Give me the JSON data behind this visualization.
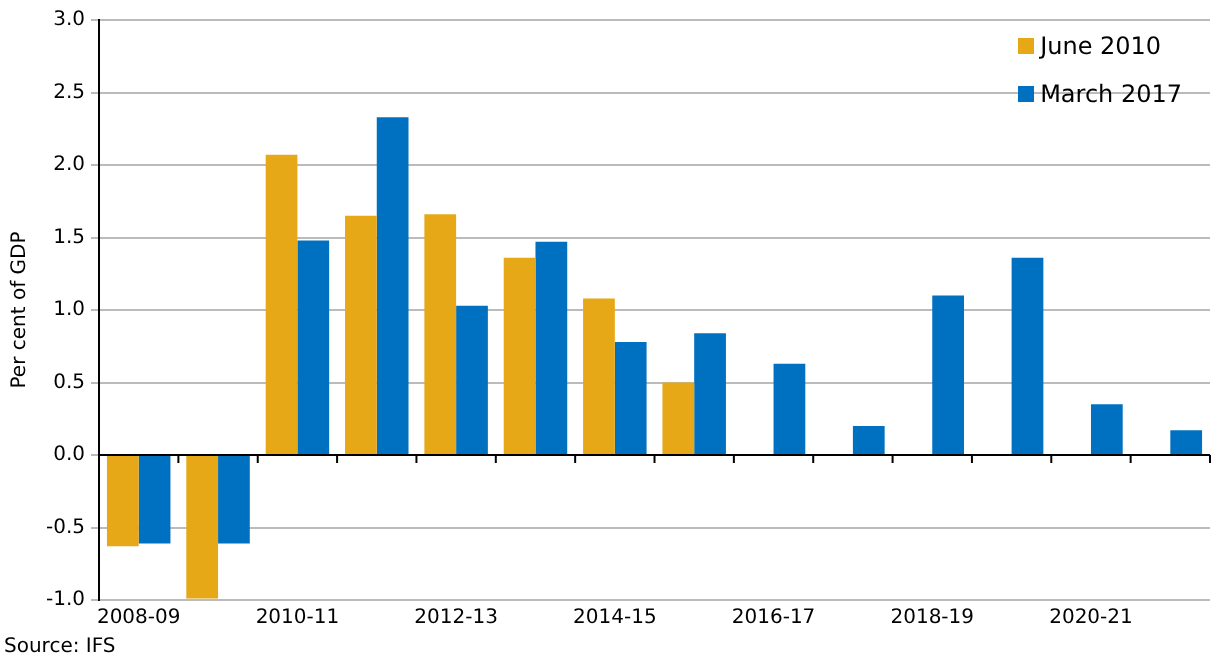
{
  "chart_data": {
    "type": "bar",
    "ylabel": "Per cent of GDP",
    "categories": [
      "2008-09",
      null,
      "2010-11",
      null,
      "2012-13",
      null,
      "2014-15",
      null,
      "2016-17",
      null,
      "2018-19",
      null,
      "2020-21",
      null
    ],
    "series": [
      {
        "name": "June 2010",
        "color": "#e6a817",
        "values": [
          -0.63,
          -0.99,
          2.07,
          1.65,
          1.66,
          1.36,
          1.08,
          0.5,
          null,
          null,
          null,
          null,
          null,
          null
        ]
      },
      {
        "name": "March 2017",
        "color": "#0070c0",
        "values": [
          -0.61,
          -0.61,
          1.48,
          2.33,
          1.03,
          1.47,
          0.78,
          0.84,
          0.63,
          0.2,
          1.1,
          1.36,
          0.35,
          0.17
        ]
      }
    ],
    "ylim": [
      -1,
      3
    ],
    "yticks": [
      {
        "value": -1,
        "label": "-1.0"
      },
      {
        "value": -0.5,
        "label": "-0.5"
      },
      {
        "value": 0,
        "label": "0.0"
      },
      {
        "value": 0.5,
        "label": "0.5"
      },
      {
        "value": 1,
        "label": "1.0"
      },
      {
        "value": 1.5,
        "label": "1.5"
      },
      {
        "value": 2,
        "label": "2.0"
      },
      {
        "value": 2.5,
        "label": "2.5"
      },
      {
        "value": 3,
        "label": "3.0"
      }
    ],
    "grid": "y",
    "legend": "top right",
    "annotations": [
      "Source: IFS"
    ]
  }
}
